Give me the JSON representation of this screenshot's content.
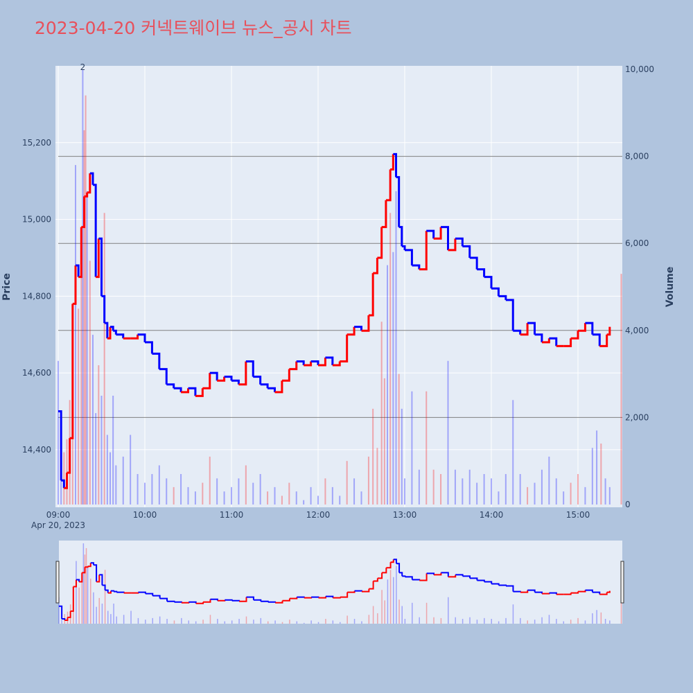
{
  "title": "2023-04-20 커넥트웨이브 뉴스_공시 차트",
  "colors": {
    "background": "#b0c4de",
    "plot_bg": "#e5ecf6",
    "up": "#ff0000",
    "down": "#0000ff",
    "title": "#e8505b",
    "grid": "#ffffff",
    "hline": "#808080"
  },
  "chart_data": {
    "type": "line",
    "title": "2023-04-20 커넥트웨이브 뉴스_공시 차트",
    "x_date_label": "Apr 20, 2023",
    "x_ticks": [
      "09:00",
      "10:00",
      "11:00",
      "12:00",
      "13:00",
      "14:00",
      "15:00"
    ],
    "y_price_label": "Price",
    "y_price_ticks": [
      "14,400",
      "14,600",
      "14,800",
      "15,000",
      "15,200"
    ],
    "y_price_range": [
      14250,
      15400
    ],
    "y_volume_label": "Volume",
    "y_volume_ticks": [
      "0",
      "2,000",
      "4,000",
      "6,000",
      "8,000",
      "10,000"
    ],
    "y_volume_range": [
      0,
      10000
    ],
    "volume_hlines": [
      2000,
      4000,
      6000,
      8000
    ],
    "annotation": "2",
    "annotation_time": "09:17",
    "grid": true,
    "rangeslider": true,
    "price_series": [
      {
        "t": "09:00",
        "p": 14500
      },
      {
        "t": "09:02",
        "p": 14320
      },
      {
        "t": "09:04",
        "p": 14300
      },
      {
        "t": "09:06",
        "p": 14340
      },
      {
        "t": "09:08",
        "p": 14430
      },
      {
        "t": "09:10",
        "p": 14780
      },
      {
        "t": "09:12",
        "p": 14880
      },
      {
        "t": "09:14",
        "p": 14850
      },
      {
        "t": "09:16",
        "p": 14980
      },
      {
        "t": "09:18",
        "p": 15060
      },
      {
        "t": "09:20",
        "p": 15070
      },
      {
        "t": "09:22",
        "p": 15120
      },
      {
        "t": "09:24",
        "p": 15090
      },
      {
        "t": "09:26",
        "p": 14850
      },
      {
        "t": "09:28",
        "p": 14950
      },
      {
        "t": "09:30",
        "p": 14800
      },
      {
        "t": "09:32",
        "p": 14730
      },
      {
        "t": "09:34",
        "p": 14690
      },
      {
        "t": "09:36",
        "p": 14720
      },
      {
        "t": "09:38",
        "p": 14710
      },
      {
        "t": "09:40",
        "p": 14700
      },
      {
        "t": "09:45",
        "p": 14690
      },
      {
        "t": "09:50",
        "p": 14690
      },
      {
        "t": "09:55",
        "p": 14700
      },
      {
        "t": "10:00",
        "p": 14680
      },
      {
        "t": "10:05",
        "p": 14650
      },
      {
        "t": "10:10",
        "p": 14610
      },
      {
        "t": "10:15",
        "p": 14570
      },
      {
        "t": "10:20",
        "p": 14560
      },
      {
        "t": "10:25",
        "p": 14550
      },
      {
        "t": "10:30",
        "p": 14560
      },
      {
        "t": "10:35",
        "p": 14540
      },
      {
        "t": "10:40",
        "p": 14560
      },
      {
        "t": "10:45",
        "p": 14600
      },
      {
        "t": "10:50",
        "p": 14580
      },
      {
        "t": "10:55",
        "p": 14590
      },
      {
        "t": "11:00",
        "p": 14580
      },
      {
        "t": "11:05",
        "p": 14570
      },
      {
        "t": "11:10",
        "p": 14630
      },
      {
        "t": "11:15",
        "p": 14590
      },
      {
        "t": "11:20",
        "p": 14570
      },
      {
        "t": "11:25",
        "p": 14560
      },
      {
        "t": "11:30",
        "p": 14550
      },
      {
        "t": "11:35",
        "p": 14580
      },
      {
        "t": "11:40",
        "p": 14610
      },
      {
        "t": "11:45",
        "p": 14630
      },
      {
        "t": "11:50",
        "p": 14620
      },
      {
        "t": "11:55",
        "p": 14630
      },
      {
        "t": "12:00",
        "p": 14620
      },
      {
        "t": "12:05",
        "p": 14640
      },
      {
        "t": "12:10",
        "p": 14620
      },
      {
        "t": "12:15",
        "p": 14630
      },
      {
        "t": "12:20",
        "p": 14700
      },
      {
        "t": "12:25",
        "p": 14720
      },
      {
        "t": "12:30",
        "p": 14710
      },
      {
        "t": "12:35",
        "p": 14750
      },
      {
        "t": "12:38",
        "p": 14860
      },
      {
        "t": "12:41",
        "p": 14900
      },
      {
        "t": "12:44",
        "p": 14980
      },
      {
        "t": "12:47",
        "p": 15050
      },
      {
        "t": "12:50",
        "p": 15130
      },
      {
        "t": "12:52",
        "p": 15170
      },
      {
        "t": "12:54",
        "p": 15110
      },
      {
        "t": "12:56",
        "p": 14980
      },
      {
        "t": "12:58",
        "p": 14930
      },
      {
        "t": "13:00",
        "p": 14920
      },
      {
        "t": "13:05",
        "p": 14880
      },
      {
        "t": "13:10",
        "p": 14870
      },
      {
        "t": "13:15",
        "p": 14970
      },
      {
        "t": "13:20",
        "p": 14950
      },
      {
        "t": "13:25",
        "p": 14980
      },
      {
        "t": "13:30",
        "p": 14920
      },
      {
        "t": "13:35",
        "p": 14950
      },
      {
        "t": "13:40",
        "p": 14930
      },
      {
        "t": "13:45",
        "p": 14900
      },
      {
        "t": "13:50",
        "p": 14870
      },
      {
        "t": "13:55",
        "p": 14850
      },
      {
        "t": "14:00",
        "p": 14820
      },
      {
        "t": "14:05",
        "p": 14800
      },
      {
        "t": "14:10",
        "p": 14790
      },
      {
        "t": "14:15",
        "p": 14710
      },
      {
        "t": "14:20",
        "p": 14700
      },
      {
        "t": "14:25",
        "p": 14730
      },
      {
        "t": "14:30",
        "p": 14700
      },
      {
        "t": "14:35",
        "p": 14680
      },
      {
        "t": "14:40",
        "p": 14690
      },
      {
        "t": "14:45",
        "p": 14670
      },
      {
        "t": "14:50",
        "p": 14670
      },
      {
        "t": "14:55",
        "p": 14690
      },
      {
        "t": "15:00",
        "p": 14710
      },
      {
        "t": "15:05",
        "p": 14730
      },
      {
        "t": "15:10",
        "p": 14700
      },
      {
        "t": "15:15",
        "p": 14670
      },
      {
        "t": "15:20",
        "p": 14700
      },
      {
        "t": "15:22",
        "p": 14720
      }
    ],
    "volume_series": [
      {
        "t": "09:00",
        "v": 3300,
        "c": "down"
      },
      {
        "t": "09:02",
        "v": 1800,
        "c": "down"
      },
      {
        "t": "09:04",
        "v": 1200,
        "c": "up"
      },
      {
        "t": "09:06",
        "v": 1500,
        "c": "up"
      },
      {
        "t": "09:08",
        "v": 2400,
        "c": "up"
      },
      {
        "t": "09:10",
        "v": 3600,
        "c": "up"
      },
      {
        "t": "09:12",
        "v": 7800,
        "c": "down"
      },
      {
        "t": "09:14",
        "v": 4500,
        "c": "up"
      },
      {
        "t": "09:16",
        "v": 6200,
        "c": "up"
      },
      {
        "t": "09:17",
        "v": 10000,
        "c": "down"
      },
      {
        "t": "09:18",
        "v": 8600,
        "c": "up"
      },
      {
        "t": "09:19",
        "v": 9400,
        "c": "up"
      },
      {
        "t": "09:20",
        "v": 7200,
        "c": "down"
      },
      {
        "t": "09:22",
        "v": 5600,
        "c": "up"
      },
      {
        "t": "09:24",
        "v": 3900,
        "c": "down"
      },
      {
        "t": "09:26",
        "v": 2100,
        "c": "down"
      },
      {
        "t": "09:28",
        "v": 3200,
        "c": "up"
      },
      {
        "t": "09:30",
        "v": 2500,
        "c": "down"
      },
      {
        "t": "09:32",
        "v": 6700,
        "c": "up"
      },
      {
        "t": "09:34",
        "v": 1600,
        "c": "down"
      },
      {
        "t": "09:36",
        "v": 1200,
        "c": "down"
      },
      {
        "t": "09:38",
        "v": 2500,
        "c": "down"
      },
      {
        "t": "09:40",
        "v": 900,
        "c": "down"
      },
      {
        "t": "09:45",
        "v": 1100,
        "c": "down"
      },
      {
        "t": "09:50",
        "v": 1600,
        "c": "down"
      },
      {
        "t": "09:55",
        "v": 700,
        "c": "down"
      },
      {
        "t": "10:00",
        "v": 500,
        "c": "down"
      },
      {
        "t": "10:05",
        "v": 700,
        "c": "down"
      },
      {
        "t": "10:10",
        "v": 900,
        "c": "down"
      },
      {
        "t": "10:15",
        "v": 600,
        "c": "down"
      },
      {
        "t": "10:20",
        "v": 400,
        "c": "up"
      },
      {
        "t": "10:25",
        "v": 700,
        "c": "down"
      },
      {
        "t": "10:30",
        "v": 400,
        "c": "down"
      },
      {
        "t": "10:35",
        "v": 300,
        "c": "down"
      },
      {
        "t": "10:40",
        "v": 500,
        "c": "up"
      },
      {
        "t": "10:45",
        "v": 1100,
        "c": "up"
      },
      {
        "t": "10:50",
        "v": 600,
        "c": "down"
      },
      {
        "t": "10:55",
        "v": 300,
        "c": "down"
      },
      {
        "t": "11:00",
        "v": 400,
        "c": "down"
      },
      {
        "t": "11:05",
        "v": 600,
        "c": "down"
      },
      {
        "t": "11:10",
        "v": 900,
        "c": "up"
      },
      {
        "t": "11:15",
        "v": 500,
        "c": "down"
      },
      {
        "t": "11:20",
        "v": 700,
        "c": "down"
      },
      {
        "t": "11:25",
        "v": 300,
        "c": "up"
      },
      {
        "t": "11:30",
        "v": 400,
        "c": "down"
      },
      {
        "t": "11:35",
        "v": 200,
        "c": "up"
      },
      {
        "t": "11:40",
        "v": 500,
        "c": "up"
      },
      {
        "t": "11:45",
        "v": 300,
        "c": "down"
      },
      {
        "t": "11:50",
        "v": 100,
        "c": "down"
      },
      {
        "t": "11:55",
        "v": 400,
        "c": "down"
      },
      {
        "t": "12:00",
        "v": 200,
        "c": "down"
      },
      {
        "t": "12:05",
        "v": 600,
        "c": "up"
      },
      {
        "t": "12:10",
        "v": 400,
        "c": "down"
      },
      {
        "t": "12:15",
        "v": 200,
        "c": "down"
      },
      {
        "t": "12:20",
        "v": 1000,
        "c": "up"
      },
      {
        "t": "12:25",
        "v": 600,
        "c": "down"
      },
      {
        "t": "12:30",
        "v": 300,
        "c": "down"
      },
      {
        "t": "12:35",
        "v": 1100,
        "c": "up"
      },
      {
        "t": "12:38",
        "v": 2200,
        "c": "up"
      },
      {
        "t": "12:41",
        "v": 1300,
        "c": "up"
      },
      {
        "t": "12:44",
        "v": 4200,
        "c": "up"
      },
      {
        "t": "12:46",
        "v": 2900,
        "c": "up"
      },
      {
        "t": "12:48",
        "v": 5500,
        "c": "down"
      },
      {
        "t": "12:50",
        "v": 6700,
        "c": "up"
      },
      {
        "t": "12:52",
        "v": 5800,
        "c": "down"
      },
      {
        "t": "12:54",
        "v": 7200,
        "c": "down"
      },
      {
        "t": "12:56",
        "v": 3000,
        "c": "up"
      },
      {
        "t": "12:58",
        "v": 2200,
        "c": "down"
      },
      {
        "t": "13:00",
        "v": 600,
        "c": "down"
      },
      {
        "t": "13:05",
        "v": 2600,
        "c": "down"
      },
      {
        "t": "13:10",
        "v": 800,
        "c": "down"
      },
      {
        "t": "13:15",
        "v": 2600,
        "c": "up"
      },
      {
        "t": "13:20",
        "v": 800,
        "c": "up"
      },
      {
        "t": "13:25",
        "v": 700,
        "c": "up"
      },
      {
        "t": "13:30",
        "v": 3300,
        "c": "down"
      },
      {
        "t": "13:35",
        "v": 800,
        "c": "down"
      },
      {
        "t": "13:40",
        "v": 600,
        "c": "down"
      },
      {
        "t": "13:45",
        "v": 800,
        "c": "down"
      },
      {
        "t": "13:50",
        "v": 500,
        "c": "down"
      },
      {
        "t": "13:55",
        "v": 700,
        "c": "down"
      },
      {
        "t": "14:00",
        "v": 600,
        "c": "down"
      },
      {
        "t": "14:05",
        "v": 300,
        "c": "down"
      },
      {
        "t": "14:10",
        "v": 700,
        "c": "down"
      },
      {
        "t": "14:15",
        "v": 2400,
        "c": "down"
      },
      {
        "t": "14:20",
        "v": 700,
        "c": "down"
      },
      {
        "t": "14:25",
        "v": 400,
        "c": "up"
      },
      {
        "t": "14:30",
        "v": 500,
        "c": "down"
      },
      {
        "t": "14:35",
        "v": 800,
        "c": "down"
      },
      {
        "t": "14:40",
        "v": 1100,
        "c": "down"
      },
      {
        "t": "14:45",
        "v": 600,
        "c": "down"
      },
      {
        "t": "14:50",
        "v": 300,
        "c": "down"
      },
      {
        "t": "14:55",
        "v": 500,
        "c": "up"
      },
      {
        "t": "15:00",
        "v": 700,
        "c": "up"
      },
      {
        "t": "15:05",
        "v": 400,
        "c": "down"
      },
      {
        "t": "15:10",
        "v": 1300,
        "c": "down"
      },
      {
        "t": "15:13",
        "v": 1700,
        "c": "down"
      },
      {
        "t": "15:16",
        "v": 1400,
        "c": "up"
      },
      {
        "t": "15:19",
        "v": 600,
        "c": "down"
      },
      {
        "t": "15:22",
        "v": 400,
        "c": "down"
      },
      {
        "t": "15:30",
        "v": 5300,
        "c": "up"
      }
    ]
  }
}
